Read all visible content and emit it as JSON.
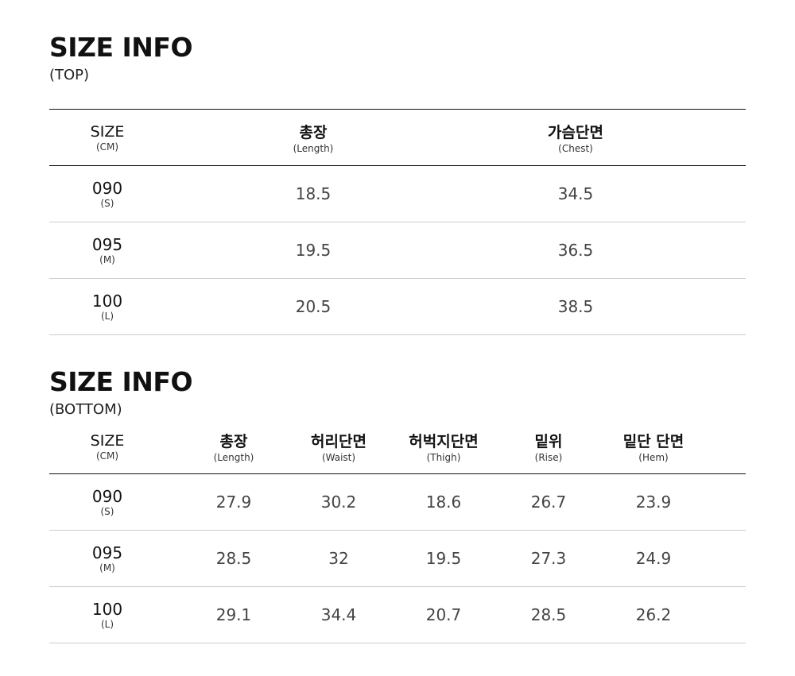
{
  "top": {
    "title": "SIZE INFO",
    "subtitle": "(TOP)",
    "headers": [
      {
        "label": "SIZE",
        "sub": "(CM)"
      },
      {
        "label": "총장",
        "sub": "(Length)"
      },
      {
        "label": "가슴단면",
        "sub": "(Chest)"
      }
    ],
    "rows": [
      {
        "size": "090",
        "code": "(S)",
        "values": [
          "18.5",
          "34.5"
        ]
      },
      {
        "size": "095",
        "code": "(M)",
        "values": [
          "19.5",
          "36.5"
        ]
      },
      {
        "size": "100",
        "code": "(L)",
        "values": [
          "20.5",
          "38.5"
        ]
      }
    ]
  },
  "bottom": {
    "title": "SIZE INFO",
    "subtitle": "(BOTTOM)",
    "headers": [
      {
        "label": "SIZE",
        "sub": "(CM)"
      },
      {
        "label": "총장",
        "sub": "(Length)"
      },
      {
        "label": "허리단면",
        "sub": "(Waist)"
      },
      {
        "label": "허벅지단면",
        "sub": "(Thigh)"
      },
      {
        "label": "밑위",
        "sub": "(Rise)"
      },
      {
        "label": "밑단 단면",
        "sub": "(Hem)"
      }
    ],
    "rows": [
      {
        "size": "090",
        "code": "(S)",
        "values": [
          "27.9",
          "30.2",
          "18.6",
          "26.7",
          "23.9"
        ]
      },
      {
        "size": "095",
        "code": "(M)",
        "values": [
          "28.5",
          "32",
          "19.5",
          "27.3",
          "24.9"
        ]
      },
      {
        "size": "100",
        "code": "(L)",
        "values": [
          "29.1",
          "34.4",
          "20.7",
          "28.5",
          "26.2"
        ]
      }
    ]
  }
}
